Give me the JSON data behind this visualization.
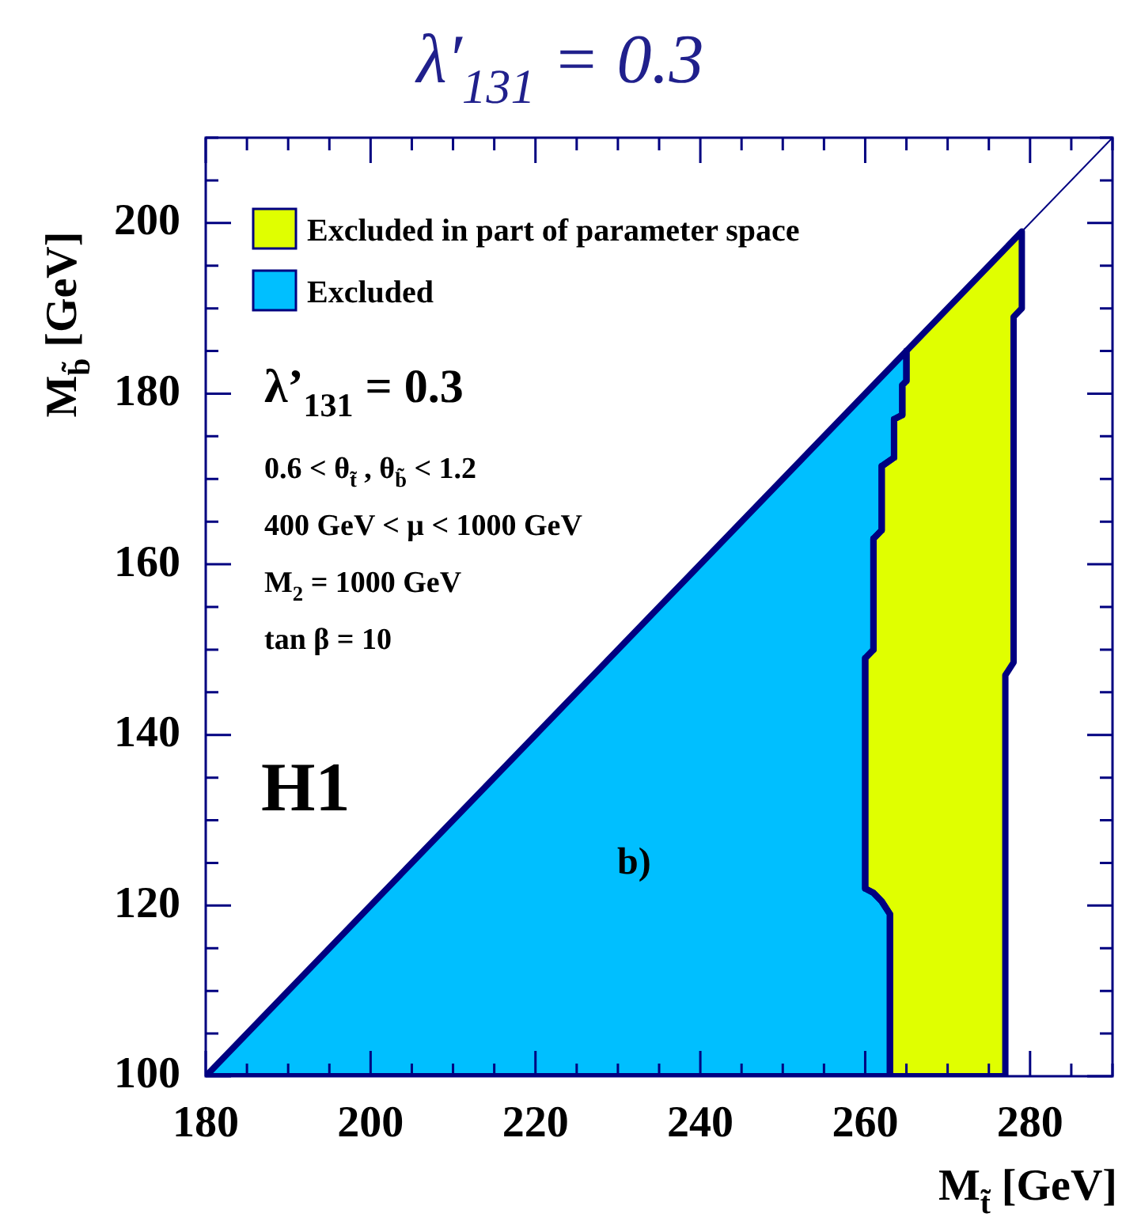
{
  "chart_data": {
    "type": "area",
    "title": "λ′$_{131}$ = 0.3",
    "xlabel": "M$_{t̃}$ [GeV]",
    "ylabel": "M$_{b̃}$ [GeV]",
    "xlim": [
      180,
      290
    ],
    "ylim": [
      100,
      210
    ],
    "xticks": [
      180,
      {
        "value": 185,
        "label": null
      },
      {
        "value": 190,
        "label": null
      },
      {
        "value": 195,
        "label": null
      },
      200,
      {
        "value": 205,
        "label": null
      },
      {
        "value": 210,
        "label": null
      },
      {
        "value": 215,
        "label": null
      },
      220,
      {
        "value": 225,
        "label": null
      },
      {
        "value": 230,
        "label": null
      },
      {
        "value": 235,
        "label": null
      },
      240,
      {
        "value": 245,
        "label": null
      },
      {
        "value": 250,
        "label": null
      },
      {
        "value": 255,
        "label": null
      },
      260,
      {
        "value": 265,
        "label": null
      },
      {
        "value": 270,
        "label": null
      },
      {
        "value": 275,
        "label": null
      },
      280,
      {
        "value": 285,
        "label": null
      },
      {
        "value": 290,
        "label": null
      }
    ],
    "yticks": [
      100,
      {
        "value": 105,
        "label": null
      },
      {
        "value": 110,
        "label": null
      },
      {
        "value": 115,
        "label": null
      },
      120,
      {
        "value": 125,
        "label": null
      },
      {
        "value": 130,
        "label": null
      },
      {
        "value": 135,
        "label": null
      },
      140,
      {
        "value": 145,
        "label": null
      },
      {
        "value": 150,
        "label": null
      },
      {
        "value": 155,
        "label": null
      },
      160,
      {
        "value": 165,
        "label": null
      },
      {
        "value": 170,
        "label": null
      },
      {
        "value": 175,
        "label": null
      },
      180,
      {
        "value": 185,
        "label": null
      },
      {
        "value": 190,
        "label": null
      },
      {
        "value": 195,
        "label": null
      },
      200,
      {
        "value": 205,
        "label": null
      },
      {
        "value": 210,
        "label": null
      }
    ],
    "legend": "top left",
    "series": [
      {
        "name": "Excluded in part of parameter space",
        "color": "#e0ff00",
        "x": [
          265,
          265,
          264.5,
          264.5,
          263.5,
          263.5,
          262,
          262,
          261,
          261,
          260,
          260,
          261,
          262,
          263,
          263,
          277,
          277,
          278,
          278,
          279,
          279
        ],
        "values": [
          185,
          181.5,
          181,
          177.5,
          177,
          172.5,
          171.5,
          164,
          163,
          150,
          149,
          122,
          121.5,
          120.5,
          119,
          100,
          100,
          147,
          148.5,
          189,
          190,
          199
        ]
      },
      {
        "name": "Excluded",
        "color": "#00bfff",
        "x": [
          180,
          265,
          265,
          264.5,
          264.5,
          263.5,
          263.5,
          262,
          262,
          261,
          261,
          260,
          260,
          261,
          262,
          263,
          263
        ],
        "values": [
          100,
          185,
          181.5,
          181,
          177.5,
          177,
          172.5,
          171.5,
          164,
          163,
          150,
          149,
          122,
          121.5,
          120.5,
          119,
          100
        ]
      },
      {
        "type": "line",
        "color": "#000080",
        "x": [
          180,
          290
        ],
        "values": [
          100,
          210
        ]
      }
    ],
    "annotations": [
      "λ’$_{131}$ = 0.3",
      "0.6 < θ$_{t̃}$ , θ$_{b̃}$ < 1.2",
      "400 GeV < μ < 1000 GeV",
      "M$_{2}$ = 1000 GeV",
      "tan β = 10",
      "H1",
      "b)"
    ]
  }
}
